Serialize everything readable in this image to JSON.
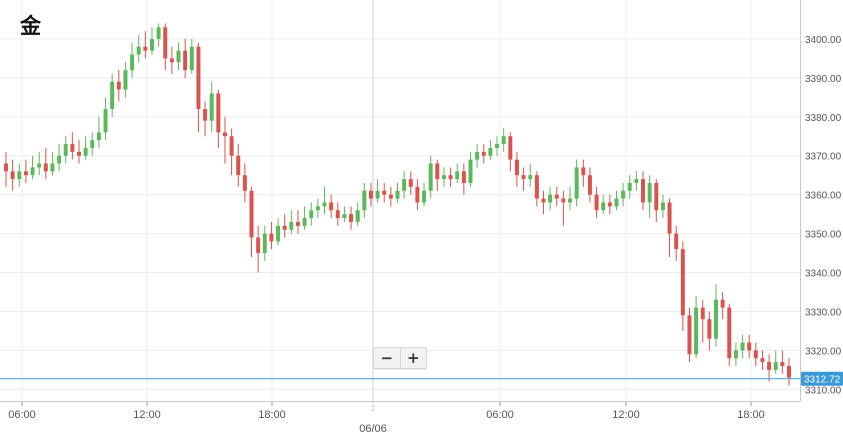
{
  "title": "金",
  "zoom": {
    "out_label": "−",
    "in_label": "+"
  },
  "colors": {
    "up": "#5cb85c",
    "down": "#d9534f",
    "price_line": "#3a9ad9",
    "grid": "#ececec"
  },
  "chart_data": {
    "type": "candlestick",
    "title": "金",
    "y_ticks": [
      3310,
      3320,
      3330,
      3340,
      3350,
      3360,
      3370,
      3380,
      3390,
      3400
    ],
    "ylim": [
      3307,
      3410
    ],
    "x_ticks": [
      "06:00",
      "12:00",
      "18:00",
      "06:00",
      "12:00",
      "18:00"
    ],
    "date_label": "06/06",
    "current_price": 3312.72,
    "current_price_label": "3312.72",
    "grid": true,
    "candles": [
      [
        3368,
        3366,
        3371,
        3362
      ],
      [
        3366,
        3364,
        3369,
        3361
      ],
      [
        3364,
        3366,
        3368,
        3362
      ],
      [
        3366,
        3365,
        3369,
        3363
      ],
      [
        3365,
        3367,
        3370,
        3364
      ],
      [
        3367,
        3368,
        3371,
        3365
      ],
      [
        3368,
        3366,
        3372,
        3364
      ],
      [
        3366,
        3368,
        3371,
        3365
      ],
      [
        3368,
        3370,
        3373,
        3366
      ],
      [
        3370,
        3373,
        3375,
        3368
      ],
      [
        3373,
        3371,
        3376,
        3369
      ],
      [
        3371,
        3370,
        3374,
        3368
      ],
      [
        3370,
        3372,
        3375,
        3369
      ],
      [
        3372,
        3374,
        3376,
        3370
      ],
      [
        3374,
        3376,
        3380,
        3372
      ],
      [
        3376,
        3382,
        3385,
        3374
      ],
      [
        3382,
        3389,
        3391,
        3380
      ],
      [
        3389,
        3387,
        3392,
        3384
      ],
      [
        3387,
        3392,
        3394,
        3385
      ],
      [
        3392,
        3396,
        3399,
        3390
      ],
      [
        3396,
        3398,
        3401,
        3394
      ],
      [
        3398,
        3397,
        3402,
        3395
      ],
      [
        3397,
        3400,
        3403,
        3396
      ],
      [
        3400,
        3403,
        3404,
        3398
      ],
      [
        3403,
        3395,
        3404,
        3392
      ],
      [
        3395,
        3394,
        3398,
        3391
      ],
      [
        3394,
        3397,
        3399,
        3392
      ],
      [
        3397,
        3392,
        3400,
        3390
      ],
      [
        3392,
        3398,
        3400,
        3391
      ],
      [
        3398,
        3382,
        3399,
        3376
      ],
      [
        3382,
        3379,
        3384,
        3375
      ],
      [
        3379,
        3386,
        3389,
        3376
      ],
      [
        3386,
        3376,
        3387,
        3372
      ],
      [
        3376,
        3375,
        3380,
        3368
      ],
      [
        3375,
        3370,
        3377,
        3365
      ],
      [
        3370,
        3365,
        3373,
        3362
      ],
      [
        3365,
        3361,
        3368,
        3358
      ],
      [
        3361,
        3349,
        3362,
        3344
      ],
      [
        3349,
        3345,
        3352,
        3340
      ],
      [
        3345,
        3350,
        3352,
        3343
      ],
      [
        3350,
        3348,
        3353,
        3346
      ],
      [
        3348,
        3352,
        3354,
        3347
      ],
      [
        3352,
        3351,
        3355,
        3349
      ],
      [
        3351,
        3353,
        3356,
        3350
      ],
      [
        3353,
        3352,
        3356,
        3350
      ],
      [
        3352,
        3354,
        3357,
        3351
      ],
      [
        3354,
        3356,
        3358,
        3352
      ],
      [
        3356,
        3357,
        3359,
        3354
      ],
      [
        3357,
        3358,
        3362,
        3355
      ],
      [
        3358,
        3356,
        3360,
        3354
      ],
      [
        3356,
        3354,
        3358,
        3352
      ],
      [
        3354,
        3355,
        3357,
        3353
      ],
      [
        3355,
        3353,
        3357,
        3351
      ],
      [
        3353,
        3356,
        3358,
        3352
      ],
      [
        3356,
        3361,
        3363,
        3354
      ],
      [
        3361,
        3359,
        3363,
        3357
      ],
      [
        3359,
        3361,
        3364,
        3358
      ],
      [
        3361,
        3360,
        3363,
        3358
      ],
      [
        3360,
        3359,
        3362,
        3357
      ],
      [
        3359,
        3361,
        3363,
        3358
      ],
      [
        3361,
        3364,
        3366,
        3359
      ],
      [
        3364,
        3362,
        3366,
        3360
      ],
      [
        3362,
        3358,
        3364,
        3356
      ],
      [
        3358,
        3361,
        3363,
        3357
      ],
      [
        3361,
        3368,
        3370,
        3359
      ],
      [
        3368,
        3364,
        3369,
        3361
      ],
      [
        3364,
        3365,
        3367,
        3362
      ],
      [
        3365,
        3364,
        3367,
        3362
      ],
      [
        3364,
        3366,
        3368,
        3363
      ],
      [
        3366,
        3363,
        3368,
        3360
      ],
      [
        3363,
        3369,
        3371,
        3362
      ],
      [
        3369,
        3371,
        3373,
        3367
      ],
      [
        3371,
        3370,
        3373,
        3368
      ],
      [
        3370,
        3372,
        3374,
        3369
      ],
      [
        3372,
        3373,
        3375,
        3370
      ],
      [
        3373,
        3375,
        3377,
        3371
      ],
      [
        3375,
        3369,
        3376,
        3366
      ],
      [
        3369,
        3365,
        3371,
        3362
      ],
      [
        3365,
        3364,
        3367,
        3361
      ],
      [
        3364,
        3365,
        3368,
        3362
      ],
      [
        3365,
        3359,
        3366,
        3357
      ],
      [
        3359,
        3358,
        3361,
        3355
      ],
      [
        3358,
        3360,
        3362,
        3356
      ],
      [
        3360,
        3359,
        3362,
        3357
      ],
      [
        3359,
        3358,
        3361,
        3352
      ],
      [
        3358,
        3359,
        3362,
        3356
      ],
      [
        3359,
        3367,
        3369,
        3357
      ],
      [
        3367,
        3365,
        3369,
        3362
      ],
      [
        3365,
        3360,
        3367,
        3358
      ],
      [
        3360,
        3356,
        3362,
        3354
      ],
      [
        3356,
        3358,
        3360,
        3355
      ],
      [
        3358,
        3357,
        3360,
        3355
      ],
      [
        3357,
        3359,
        3361,
        3356
      ],
      [
        3359,
        3361,
        3363,
        3357
      ],
      [
        3361,
        3363,
        3365,
        3359
      ],
      [
        3363,
        3364,
        3366,
        3361
      ],
      [
        3364,
        3358,
        3366,
        3356
      ],
      [
        3358,
        3363,
        3365,
        3354
      ],
      [
        3363,
        3356,
        3364,
        3353
      ],
      [
        3356,
        3358,
        3360,
        3354
      ],
      [
        3358,
        3350,
        3359,
        3344
      ],
      [
        3350,
        3346,
        3352,
        3343
      ],
      [
        3346,
        3329,
        3348,
        3325
      ],
      [
        3329,
        3319,
        3331,
        3317
      ],
      [
        3319,
        3331,
        3334,
        3318
      ],
      [
        3331,
        3328,
        3333,
        3322
      ],
      [
        3328,
        3323,
        3330,
        3320
      ],
      [
        3323,
        3333,
        3337,
        3321
      ],
      [
        3333,
        3331,
        3335,
        3328
      ],
      [
        3331,
        3318,
        3332,
        3316
      ],
      [
        3318,
        3320,
        3322,
        3316
      ],
      [
        3320,
        3322,
        3324,
        3318
      ],
      [
        3322,
        3320,
        3324,
        3318
      ],
      [
        3320,
        3318,
        3322,
        3316
      ],
      [
        3318,
        3317,
        3320,
        3315
      ],
      [
        3317,
        3315,
        3319,
        3312
      ],
      [
        3315,
        3317,
        3320,
        3314
      ],
      [
        3317,
        3316,
        3320,
        3314
      ],
      [
        3316,
        3313,
        3318,
        3311
      ]
    ]
  }
}
